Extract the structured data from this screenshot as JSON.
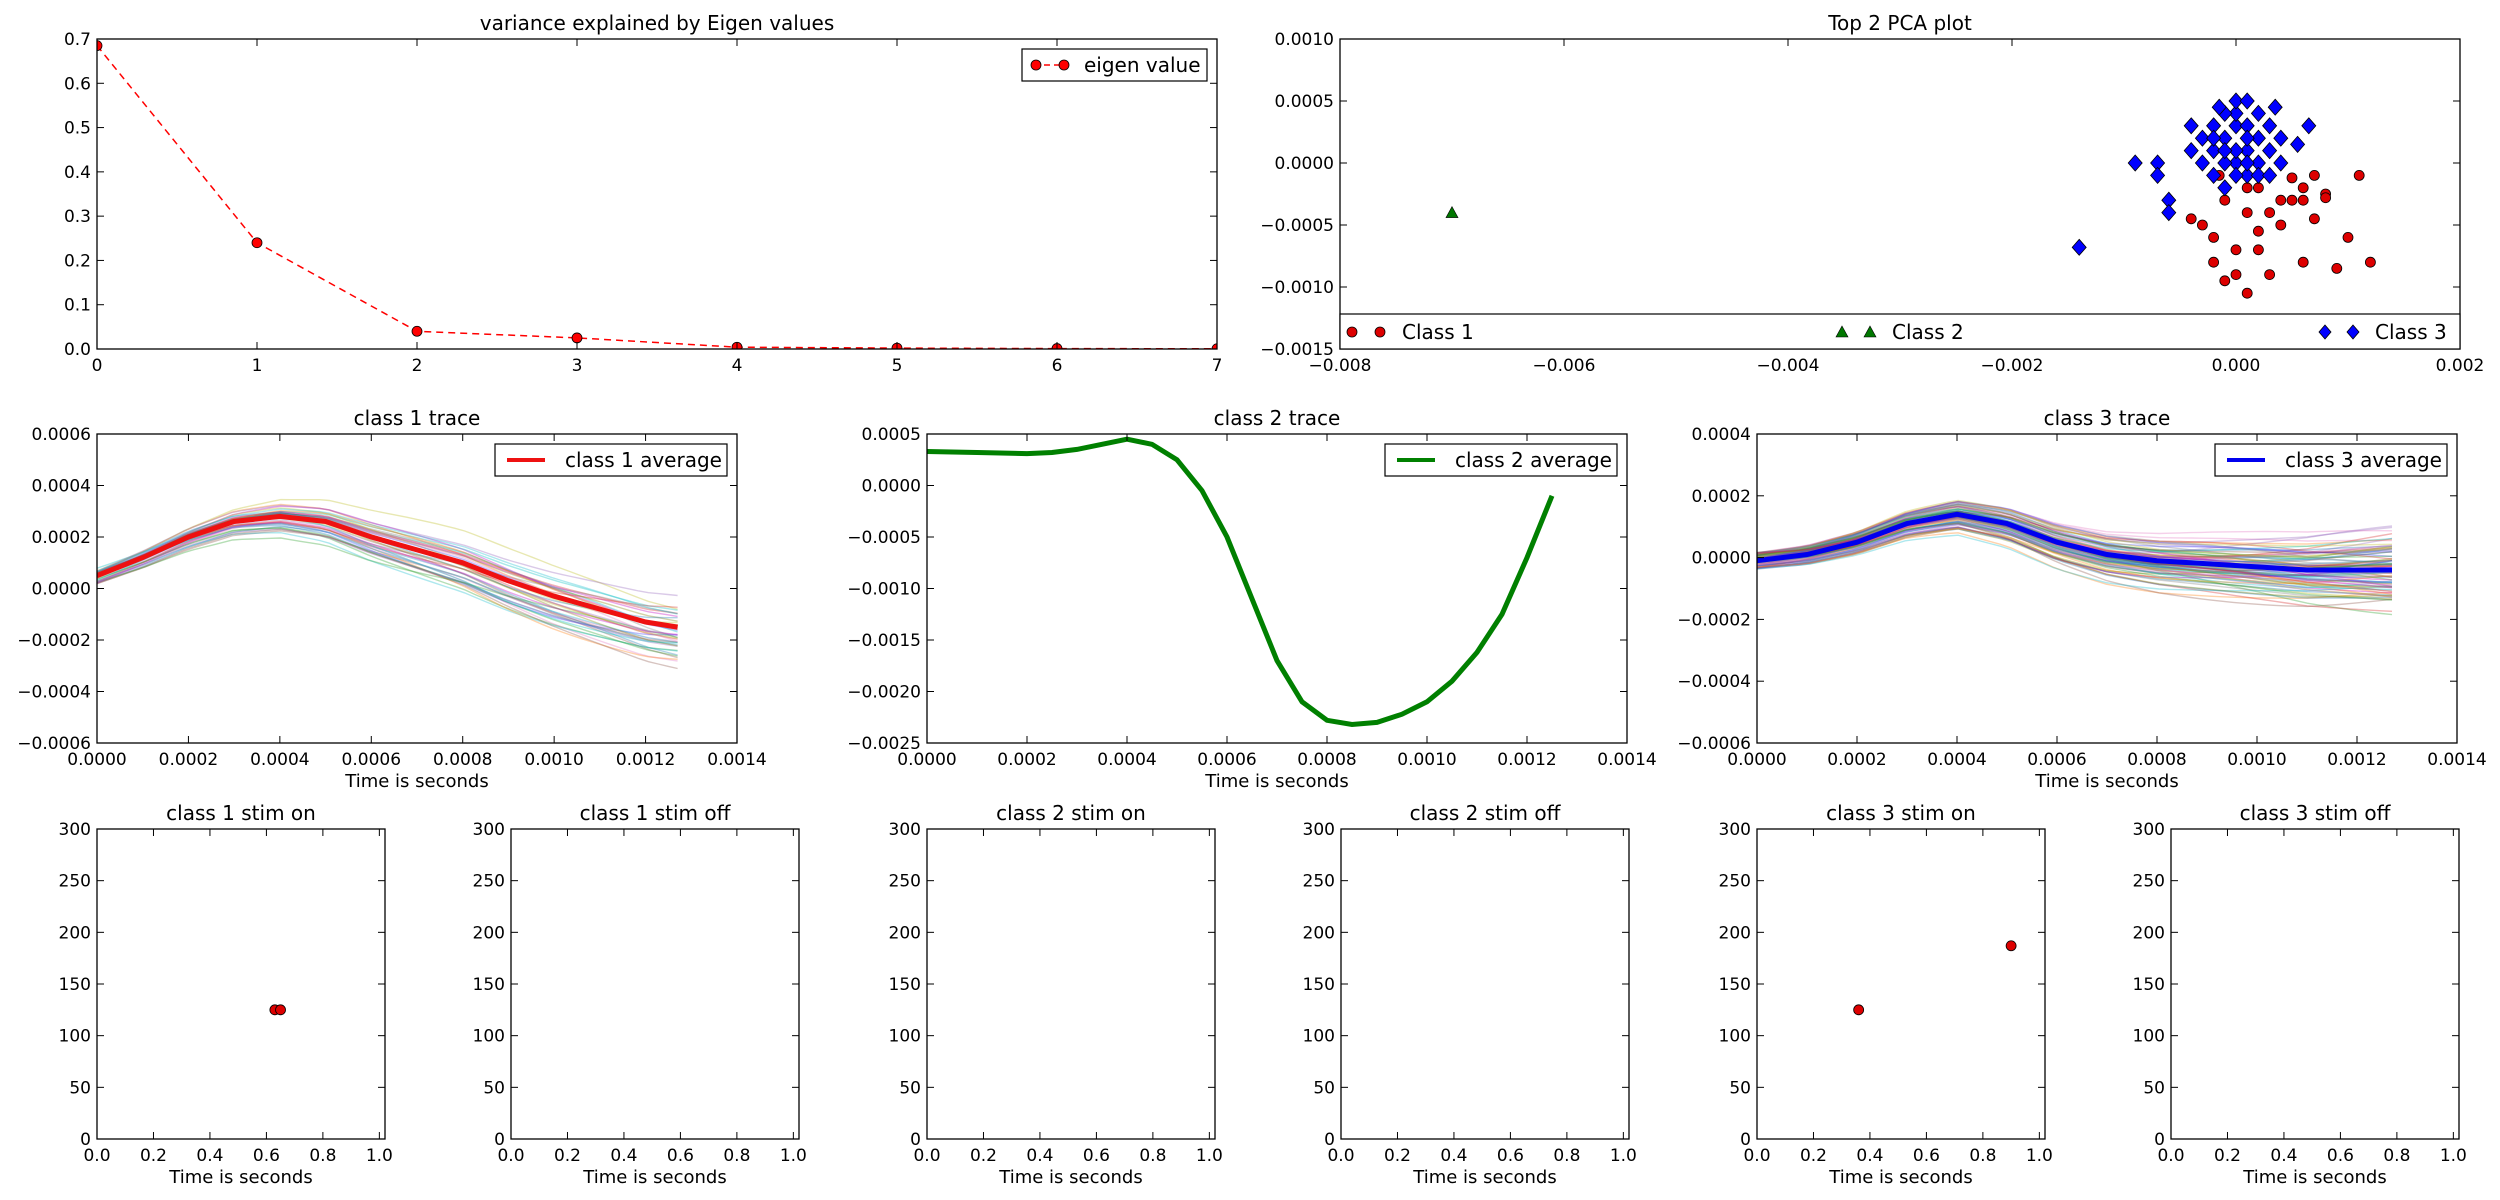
{
  "chart_data": [
    {
      "id": "eigen",
      "type": "line",
      "title": "variance explained by Eigen values",
      "xlabel": "",
      "ylabel": "",
      "xlim": [
        0,
        7
      ],
      "ylim": [
        0,
        0.7
      ],
      "xticks": [
        "0",
        "1",
        "2",
        "3",
        "4",
        "5",
        "6",
        "7"
      ],
      "yticks": [
        "0.0",
        "0.1",
        "0.2",
        "0.3",
        "0.4",
        "0.5",
        "0.6",
        "0.7"
      ],
      "legend": {
        "position": "top-right",
        "entries": [
          "eigen value"
        ]
      },
      "series": [
        {
          "name": "eigen value",
          "color": "#ff0000",
          "style": "dashed-marker",
          "x": [
            0,
            1,
            2,
            3,
            4,
            5,
            6,
            7
          ],
          "y": [
            0.685,
            0.24,
            0.04,
            0.025,
            0.004,
            0.002,
            0.001,
            0.0005
          ]
        }
      ]
    },
    {
      "id": "pca",
      "type": "scatter",
      "title": "Top 2 PCA plot",
      "xlim": [
        -0.008,
        0.002
      ],
      "ylim": [
        -0.0015,
        0.001
      ],
      "xticks": [
        "−0.008",
        "−0.006",
        "−0.004",
        "−0.002",
        "0.000",
        "0.002"
      ],
      "yticks": [
        "−0.0015",
        "−0.0010",
        "−0.0005",
        "0.0000",
        "0.0005",
        "0.0010"
      ],
      "legend": {
        "position": "bottom",
        "entries": [
          "Class 1",
          "Class 2",
          "Class 3"
        ]
      },
      "series": [
        {
          "name": "Class 1",
          "marker": "circle",
          "color": "#dd0000",
          "points": [
            [
              0.0003,
              -0.0001
            ],
            [
              0.0005,
              -0.00012
            ],
            [
              0.0007,
              -0.0001
            ],
            [
              0.0011,
              -0.0001
            ],
            [
              0.0002,
              -0.0002
            ],
            [
              0.0004,
              -0.0003
            ],
            [
              0.0006,
              -0.0002
            ],
            [
              0.0008,
              -0.00025
            ],
            [
              -0.0001,
              -0.0003
            ],
            [
              0.0001,
              -0.0004
            ],
            [
              0.0003,
              -0.0004
            ],
            [
              0.0005,
              -0.0003
            ],
            [
              -0.0003,
              -0.0005
            ],
            [
              -0.0002,
              -0.0006
            ],
            [
              0.0,
              -0.0007
            ],
            [
              0.0002,
              -0.0007
            ],
            [
              0.0004,
              -0.0005
            ],
            [
              0.0006,
              -0.0003
            ],
            [
              -0.0002,
              -0.0008
            ],
            [
              0.0,
              -0.0009
            ],
            [
              0.0001,
              -0.00105
            ],
            [
              0.0003,
              -0.0009
            ],
            [
              0.0006,
              -0.0008
            ],
            [
              0.0009,
              -0.00085
            ],
            [
              0.0012,
              -0.0008
            ],
            [
              0.001,
              -0.0006
            ],
            [
              -0.0001,
              -0.00095
            ],
            [
              0.0002,
              -0.00055
            ],
            [
              -0.0004,
              -0.00045
            ],
            [
              0.0007,
              -0.00045
            ],
            [
              0.0008,
              -0.00028
            ],
            [
              0.0001,
              -0.0002
            ],
            [
              -0.00015,
              -0.0001
            ]
          ]
        },
        {
          "name": "Class 2",
          "marker": "triangle",
          "color": "#007700",
          "points": [
            [
              -0.007,
              -0.0004
            ]
          ]
        },
        {
          "name": "Class 3",
          "marker": "diamond",
          "color": "#0000ff",
          "points": [
            [
              0.0,
              0.0
            ],
            [
              0.0001,
              0.0001
            ],
            [
              -0.0001,
              0.0002
            ],
            [
              0.0002,
              0.0
            ],
            [
              -0.0002,
              -0.0001
            ],
            [
              0.0,
              0.0003
            ],
            [
              0.0001,
              -0.0001
            ],
            [
              -0.0001,
              0.0
            ],
            [
              0.0002,
              0.0002
            ],
            [
              -0.0002,
              0.0001
            ],
            [
              0.0,
              0.0004
            ],
            [
              0.0001,
              0.0003
            ],
            [
              -0.0001,
              0.0004
            ],
            [
              0.0,
              0.0005
            ],
            [
              0.0001,
              0.0005
            ],
            [
              -0.0003,
              0.0002
            ],
            [
              0.0003,
              0.0001
            ],
            [
              -0.0001,
              -0.0002
            ],
            [
              0.0001,
              0.0002
            ],
            [
              0.0,
              0.0001
            ],
            [
              -0.0002,
              0.0003
            ],
            [
              0.0002,
              0.0004
            ],
            [
              0.0003,
              0.0003
            ],
            [
              -0.0003,
              0.0
            ],
            [
              0.0001,
              0.0
            ],
            [
              0.0,
              -0.0001
            ],
            [
              -0.0001,
              0.0001
            ],
            [
              0.0002,
              -0.0001
            ],
            [
              -0.0002,
              0.0002
            ],
            [
              0.0003,
              -0.0001
            ],
            [
              0.0004,
              0.0
            ],
            [
              0.00055,
              0.00015
            ],
            [
              0.00065,
              0.0003
            ],
            [
              -0.0007,
              0.0
            ],
            [
              -0.0007,
              -0.0001
            ],
            [
              -0.0006,
              -0.0003
            ],
            [
              -0.0006,
              -0.0004
            ],
            [
              -0.0009,
              0.0
            ],
            [
              -0.0014,
              -0.00068
            ],
            [
              0.0004,
              0.0002
            ],
            [
              -0.0004,
              0.0003
            ],
            [
              -0.0004,
              0.0001
            ],
            [
              0.00035,
              0.00045
            ],
            [
              -0.00015,
              0.00045
            ]
          ]
        }
      ]
    },
    {
      "id": "class1trace",
      "type": "line",
      "title": "class 1 trace",
      "xlabel": "Time is seconds",
      "xlim": [
        0,
        0.0014
      ],
      "ylim": [
        -0.0006,
        0.0006
      ],
      "xticks": [
        "0.0000",
        "0.0002",
        "0.0004",
        "0.0006",
        "0.0008",
        "0.0010",
        "0.0012",
        "0.0014"
      ],
      "yticks": [
        "−0.0006",
        "−0.0004",
        "−0.0002",
        "0.0000",
        "0.0002",
        "0.0004",
        "0.0006"
      ],
      "legend": {
        "position": "top-right",
        "entries": [
          "class 1 average"
        ]
      },
      "series": [
        {
          "name": "class 1 average",
          "color": "#ee1111",
          "x": [
            0,
            0.0001,
            0.0002,
            0.0003,
            0.0004,
            0.0005,
            0.0006,
            0.0007,
            0.0008,
            0.0009,
            0.001,
            0.0011,
            0.0012,
            0.00127
          ],
          "y": [
            5e-05,
            0.00012,
            0.0002,
            0.00026,
            0.00028,
            0.00026,
            0.0002,
            0.00015,
            0.0001,
            3e-05,
            -3e-05,
            -8e-05,
            -0.00013,
            -0.00015
          ]
        }
      ],
      "traces": {
        "count": 40,
        "seed": 11,
        "amp": 0.00011,
        "color_alpha": 0.35
      }
    },
    {
      "id": "class2trace",
      "type": "line",
      "title": "class 2 trace",
      "xlabel": "Time is seconds",
      "xlim": [
        0,
        0.0014
      ],
      "ylim": [
        -0.0025,
        0.0005
      ],
      "xticks": [
        "0.0000",
        "0.0002",
        "0.0004",
        "0.0006",
        "0.0008",
        "0.0010",
        "0.0012",
        "0.0014"
      ],
      "yticks": [
        "−0.0025",
        "−0.0020",
        "−0.0015",
        "−0.0010",
        "−0.0005",
        "0.0000",
        "0.0005"
      ],
      "legend": {
        "position": "top-right",
        "entries": [
          "class 2 average"
        ]
      },
      "series": [
        {
          "name": "class 2 average",
          "color": "#008000",
          "x": [
            0,
            0.0001,
            0.0002,
            0.00025,
            0.0003,
            0.00035,
            0.0004,
            0.00045,
            0.0005,
            0.00055,
            0.0006,
            0.00065,
            0.0007,
            0.00075,
            0.0008,
            0.00085,
            0.0009,
            0.00095,
            0.001,
            0.00105,
            0.0011,
            0.00115,
            0.0012,
            0.00125
          ],
          "y": [
            0.00033,
            0.00032,
            0.00031,
            0.00032,
            0.00035,
            0.0004,
            0.00045,
            0.0004,
            0.00025,
            -5e-05,
            -0.0005,
            -0.0011,
            -0.0017,
            -0.0021,
            -0.00228,
            -0.00232,
            -0.0023,
            -0.00222,
            -0.0021,
            -0.0019,
            -0.00162,
            -0.00125,
            -0.0007,
            -0.0001
          ]
        }
      ]
    },
    {
      "id": "class3trace",
      "type": "line",
      "title": "class 3 trace",
      "xlabel": "Time is seconds",
      "xlim": [
        0,
        0.0014
      ],
      "ylim": [
        -0.0006,
        0.0004
      ],
      "xticks": [
        "0.0000",
        "0.0002",
        "0.0004",
        "0.0006",
        "0.0008",
        "0.0010",
        "0.0012",
        "0.0014"
      ],
      "yticks": [
        "−0.0006",
        "−0.0004",
        "−0.0002",
        "0.0000",
        "0.0002",
        "0.0004"
      ],
      "legend": {
        "position": "top-right",
        "entries": [
          "class 3 average"
        ]
      },
      "series": [
        {
          "name": "class 3 average",
          "color": "#0000ee",
          "x": [
            0,
            0.0001,
            0.0002,
            0.0003,
            0.0004,
            0.0005,
            0.0006,
            0.0007,
            0.0008,
            0.0009,
            0.001,
            0.0011,
            0.0012,
            0.00127
          ],
          "y": [
            -1e-05,
            1e-05,
            5e-05,
            0.00011,
            0.00014,
            0.00011,
            5e-05,
            1e-05,
            -1e-05,
            -2e-05,
            -3e-05,
            -4e-05,
            -4e-05,
            -4e-05
          ]
        }
      ],
      "traces": {
        "count": 90,
        "seed": 7,
        "amp": 9e-05,
        "color_alpha": 0.35
      }
    },
    {
      "id": "s1on",
      "type": "scatter",
      "title": "class 1 stim on",
      "xlabel": "Time is seconds",
      "xlim": [
        0,
        1.02
      ],
      "ylim": [
        0,
        300
      ],
      "xticks": [
        "0.0",
        "0.2",
        "0.4",
        "0.6",
        "0.8",
        "1.0"
      ],
      "yticks": [
        "0",
        "50",
        "100",
        "150",
        "200",
        "250",
        "300"
      ],
      "series": [
        {
          "color": "#dd0000",
          "points": [
            [
              0.63,
              125
            ],
            [
              0.65,
              125
            ]
          ]
        }
      ]
    },
    {
      "id": "s1off",
      "type": "scatter",
      "title": "class 1 stim off",
      "xlabel": "Time is seconds",
      "xlim": [
        0,
        1.02
      ],
      "ylim": [
        0,
        300
      ],
      "xticks": [
        "0.0",
        "0.2",
        "0.4",
        "0.6",
        "0.8",
        "1.0"
      ],
      "yticks": [
        "0",
        "50",
        "100",
        "150",
        "200",
        "250",
        "300"
      ],
      "series": [
        {
          "color": "#dd0000",
          "points": []
        }
      ]
    },
    {
      "id": "s2on",
      "type": "scatter",
      "title": "class 2 stim on",
      "xlabel": "Time is seconds",
      "xlim": [
        0,
        1.02
      ],
      "ylim": [
        0,
        300
      ],
      "xticks": [
        "0.0",
        "0.2",
        "0.4",
        "0.6",
        "0.8",
        "1.0"
      ],
      "yticks": [
        "0",
        "50",
        "100",
        "150",
        "200",
        "250",
        "300"
      ],
      "series": [
        {
          "color": "#dd0000",
          "points": []
        }
      ]
    },
    {
      "id": "s2off",
      "type": "scatter",
      "title": "class 2 stim off",
      "xlabel": "Time is seconds",
      "xlim": [
        0,
        1.02
      ],
      "ylim": [
        0,
        300
      ],
      "xticks": [
        "0.0",
        "0.2",
        "0.4",
        "0.6",
        "0.8",
        "1.0"
      ],
      "yticks": [
        "0",
        "50",
        "100",
        "150",
        "200",
        "250",
        "300"
      ],
      "series": [
        {
          "color": "#dd0000",
          "points": []
        }
      ]
    },
    {
      "id": "s3on",
      "type": "scatter",
      "title": "class 3 stim on",
      "xlabel": "Time is seconds",
      "xlim": [
        0,
        1.02
      ],
      "ylim": [
        0,
        300
      ],
      "xticks": [
        "0.0",
        "0.2",
        "0.4",
        "0.6",
        "0.8",
        "1.0"
      ],
      "yticks": [
        "0",
        "50",
        "100",
        "150",
        "200",
        "250",
        "300"
      ],
      "series": [
        {
          "color": "#dd0000",
          "points": [
            [
              0.36,
              125
            ],
            [
              0.9,
              187
            ]
          ]
        }
      ]
    },
    {
      "id": "s3off",
      "type": "scatter",
      "title": "class 3 stim off",
      "xlabel": "Time is seconds",
      "xlim": [
        0,
        1.02
      ],
      "ylim": [
        0,
        300
      ],
      "xticks": [
        "0.0",
        "0.2",
        "0.4",
        "0.6",
        "0.8",
        "1.0"
      ],
      "yticks": [
        "0",
        "50",
        "100",
        "150",
        "200",
        "250",
        "300"
      ],
      "series": [
        {
          "color": "#dd0000",
          "points": []
        }
      ]
    }
  ]
}
